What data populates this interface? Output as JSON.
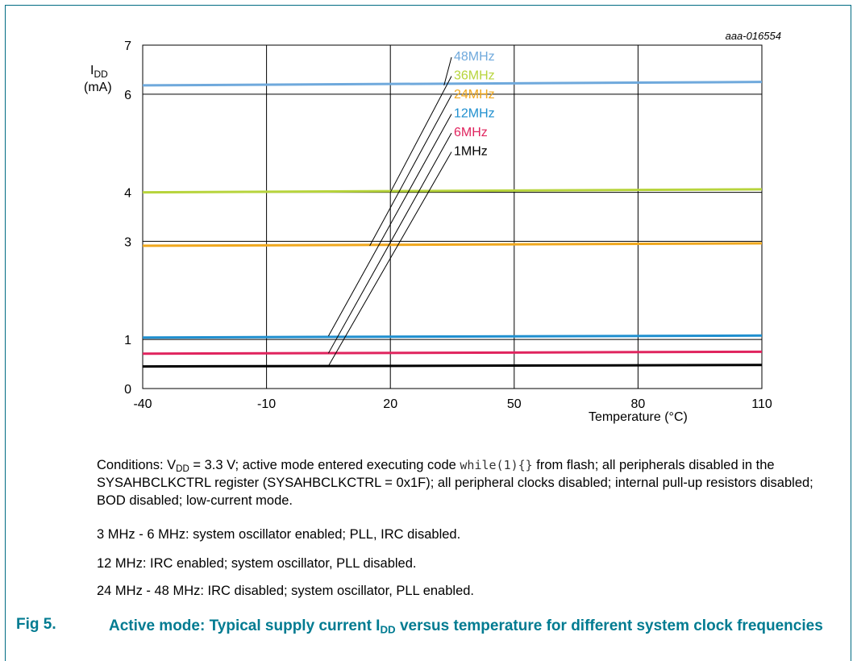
{
  "chart_data": {
    "type": "line",
    "code_id": "aaa-016554",
    "ylabel_main": "I",
    "ylabel_sub": "DD",
    "yunit": "(mA)",
    "xlabel": "Temperature (°C)",
    "xlim": [
      -40,
      110
    ],
    "ylim": [
      0,
      7
    ],
    "x_ticks": [
      "-40",
      "-10",
      "20",
      "50",
      "80",
      "110"
    ],
    "y_ticks": [
      {
        "value": 0,
        "label": "0"
      },
      {
        "value": 1,
        "label": "1"
      },
      {
        "value": 3,
        "label": "3"
      },
      {
        "value": 4,
        "label": "4"
      },
      {
        "value": 6,
        "label": "6"
      },
      {
        "value": 7,
        "label": "7"
      }
    ],
    "grid": true,
    "x": [
      -40,
      110
    ],
    "series": [
      {
        "name": "48MHz",
        "color": "#6fa9dc",
        "values": [
          6.18,
          6.25
        ],
        "label_at": [
          33,
          6.18
        ]
      },
      {
        "name": "36MHz",
        "color": "#b7d43c",
        "values": [
          4.0,
          4.06
        ],
        "label_at": [
          20,
          4.0
        ]
      },
      {
        "name": "24MHz",
        "color": "#f0a81e",
        "values": [
          2.91,
          2.96
        ],
        "label_at": [
          15,
          2.91
        ]
      },
      {
        "name": "12MHz",
        "color": "#1f8fcf",
        "values": [
          1.04,
          1.08
        ],
        "label_at": [
          5,
          1.07
        ]
      },
      {
        "name": "6MHz",
        "color": "#e0245e",
        "values": [
          0.71,
          0.75
        ],
        "label_at": [
          5,
          0.72
        ]
      },
      {
        "name": "1MHz",
        "color": "#000000",
        "values": [
          0.45,
          0.48
        ],
        "label_at": [
          5,
          0.46
        ]
      }
    ]
  },
  "conditions": {
    "p1_a": "Conditions: V",
    "p1_sub": "DD",
    "p1_b": " = 3.3 V; active mode entered executing code ",
    "p1_code": "while(1){}",
    "p1_c": " from flash; all peripherals disabled in the SYSAHBCLKCTRL register (SYSAHBCLKCTRL = 0x1F); all peripheral clocks disabled; internal pull-up resistors disabled; BOD disabled; low-current mode.",
    "p2": "3 MHz - 6 MHz: system oscillator enabled; PLL, IRC disabled.",
    "p3": "12 MHz: IRC enabled; system oscillator, PLL disabled.",
    "p4": "24 MHz - 48 MHz: IRC disabled; system oscillator, PLL enabled."
  },
  "figure": {
    "number": "Fig 5.",
    "title_a": "Active mode: Typical supply current I",
    "title_sub": "DD",
    "title_b": " versus temperature for different system clock frequencies"
  }
}
